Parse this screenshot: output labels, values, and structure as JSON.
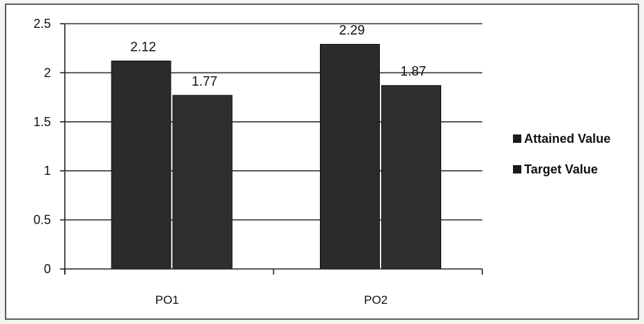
{
  "chart_data": {
    "type": "bar",
    "categories": [
      "PO1",
      "PO2"
    ],
    "series": [
      {
        "name": "Attained Value",
        "values": [
          2.12,
          2.29
        ],
        "color": "#2b2b2b"
      },
      {
        "name": "Target Value",
        "values": [
          1.77,
          1.87
        ],
        "color": "#2f2f2f"
      }
    ],
    "data_labels": [
      [
        "2.12",
        "2.29"
      ],
      [
        "1.77",
        "1.87"
      ]
    ],
    "yticks": [
      "0",
      "0.5",
      "1",
      "1.5",
      "2",
      "2.5"
    ],
    "ylim": [
      0,
      2.5
    ],
    "grid": true,
    "legend_position": "right",
    "title": "",
    "xlabel": "",
    "ylabel": ""
  }
}
